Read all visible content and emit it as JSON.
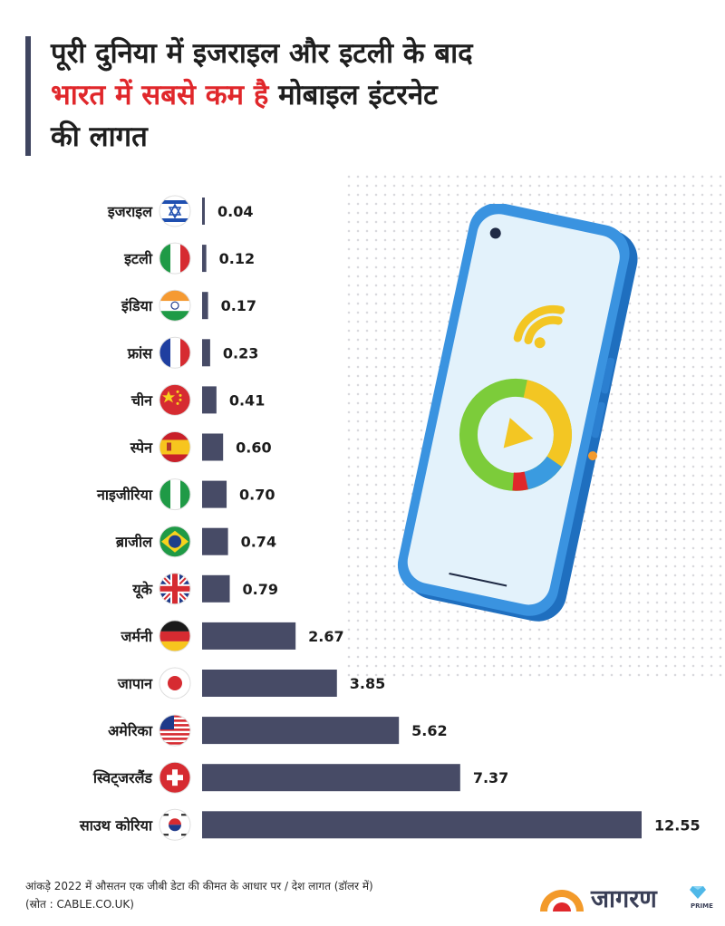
{
  "title": {
    "line1": "पूरी दुनिया में इजराइल और इटली के बाद",
    "line2_highlight": "भारत में सबसे कम है",
    "line2_rest": " मोबाइल इंटरनेट",
    "line3": "की लागत"
  },
  "chart_data": {
    "type": "bar",
    "orientation": "horizontal",
    "categories": [
      "इजराइल",
      "इटली",
      "इंडिया",
      "फ्रांस",
      "चीन",
      "स्पेन",
      "नाइजीरिया",
      "ब्राजील",
      "यूके",
      "जर्मनी",
      "जापान",
      "अमेरिका",
      "स्विट्जरलैंड",
      "साउथ कोरिया"
    ],
    "values": [
      0.04,
      0.12,
      0.17,
      0.23,
      0.41,
      0.6,
      0.7,
      0.74,
      0.79,
      2.67,
      3.85,
      5.62,
      7.37,
      12.55
    ],
    "value_labels": [
      "0.04",
      "0.12",
      "0.17",
      "0.23",
      "0.41",
      "0.60",
      "0.70",
      "0.74",
      "0.79",
      "2.67",
      "3.85",
      "5.62",
      "7.37",
      "12.55"
    ],
    "flags": [
      "israel-flag-icon",
      "italy-flag-icon",
      "india-flag-icon",
      "france-flag-icon",
      "china-flag-icon",
      "spain-flag-icon",
      "nigeria-flag-icon",
      "brazil-flag-icon",
      "uk-flag-icon",
      "germany-flag-icon",
      "japan-flag-icon",
      "usa-flag-icon",
      "switzerland-flag-icon",
      "south-korea-flag-icon"
    ],
    "bar_color": "#474b66",
    "grid": false
  },
  "footer": {
    "note": "आंकड़े 2022 में औसतन एक जीबी डेटा की कीमत के आधार पर / देश लागत (डॉलर में)",
    "source": "(स्रोत : CABLE.CO.UK)"
  },
  "logo": {
    "name": "जागरण",
    "tag": "PRIME"
  },
  "colors": {
    "accent": "#e0272b",
    "title_bar": "#3f4560",
    "phone_body": "#2f86d6"
  }
}
